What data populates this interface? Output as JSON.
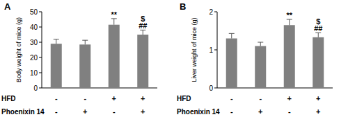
{
  "chart_data": [
    {
      "type": "bar",
      "title": "A",
      "y_label": "Body weight of mice (g)",
      "categories": [
        null,
        null,
        null,
        null
      ],
      "values": [
        29,
        28.5,
        41.5,
        35
      ],
      "errors": [
        3,
        2.8,
        4,
        3
      ],
      "annotations": [
        null,
        null,
        [
          "**"
        ],
        [
          "$",
          "##"
        ]
      ],
      "treatments": [
        {
          "label": "HFD",
          "values": [
            "-",
            "-",
            "+",
            "+"
          ]
        },
        {
          "label": "Phoenixin 14",
          "values": [
            "-",
            "+",
            "-",
            "+"
          ]
        }
      ],
      "color": "#808080",
      "ylim": [
        0,
        50
      ],
      "yticks": [
        0,
        10,
        20,
        30,
        40,
        50
      ],
      "grid": false
    },
    {
      "type": "bar",
      "title": "B",
      "y_label": "Liver weight of mice (g)",
      "categories": [
        null,
        null,
        null,
        null
      ],
      "values": [
        1.3,
        1.1,
        1.65,
        1.33
      ],
      "errors": [
        0.13,
        0.1,
        0.15,
        0.12
      ],
      "annotations": [
        null,
        null,
        [
          "**"
        ],
        [
          "$",
          "##"
        ]
      ],
      "treatments": [
        {
          "label": "HFD",
          "values": [
            "-",
            "-",
            "+",
            "+"
          ]
        },
        {
          "label": "Phoenixin 14",
          "values": [
            "-",
            "+",
            "-",
            "+"
          ]
        }
      ],
      "color": "#808080",
      "ylim": [
        0,
        2
      ],
      "yticks": [
        0,
        1,
        2
      ],
      "grid": false
    }
  ]
}
